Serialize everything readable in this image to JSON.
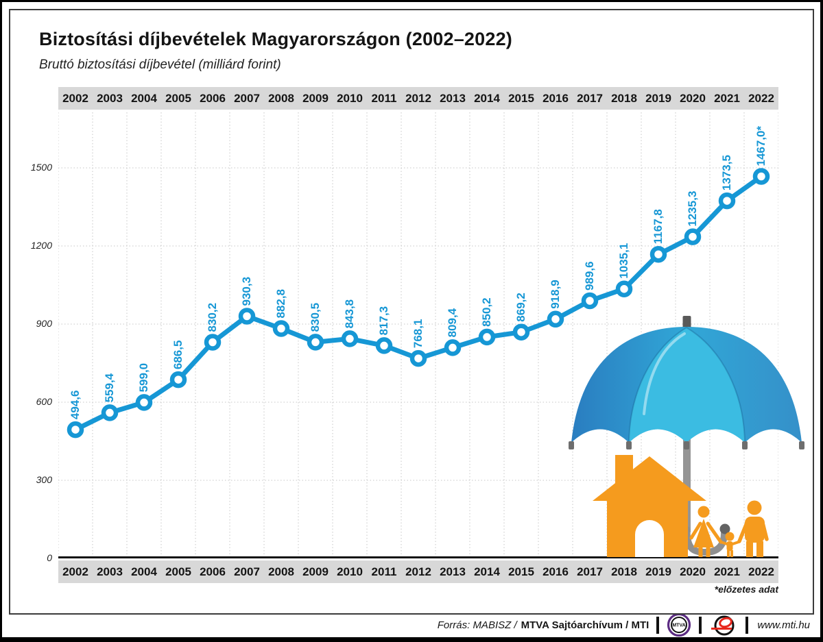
{
  "header": {
    "title": "Biztosítási díjbevételek Magyarországon (2002–2022)",
    "subtitle": "Bruttó biztosítási díjbevétel (milliárd forint)"
  },
  "chart_data": {
    "type": "line",
    "title": "Biztosítási díjbevételek Magyarországon (2002–2022)",
    "subtitle_unit": "Bruttó biztosítási díjbevétel (milliárd forint)",
    "categories": [
      "2002",
      "2003",
      "2004",
      "2005",
      "2006",
      "2007",
      "2008",
      "2009",
      "2010",
      "2011",
      "2012",
      "2013",
      "2014",
      "2015",
      "2016",
      "2017",
      "2018",
      "2019",
      "2020",
      "2021",
      "2022"
    ],
    "series": [
      {
        "name": "Bruttó biztosítási díjbevétel",
        "values": [
          494.6,
          559.4,
          599.0,
          686.5,
          830.2,
          930.3,
          882.8,
          830.5,
          843.8,
          817.3,
          768.1,
          809.4,
          850.2,
          869.2,
          918.9,
          989.6,
          1035.1,
          1167.8,
          1235.3,
          1373.5,
          1467.0
        ],
        "point_labels": [
          "494,6",
          "559,4",
          "599,0",
          "686,5",
          "830,2",
          "930,3",
          "882,8",
          "830,5",
          "843,8",
          "817,3",
          "768,1",
          "809,4",
          "850,2",
          "869,2",
          "918,9",
          "989,6",
          "1035,1",
          "1167,8",
          "1235,3",
          "1373,5",
          "1467,0*"
        ]
      }
    ],
    "ylim": [
      0,
      1500
    ],
    "yticks": [
      0,
      300,
      600,
      900,
      1200,
      1500
    ],
    "grid": "dotted, vertical per year column and horizontal per 300",
    "legend_position": "none",
    "x_axis": "years shown in gray bands above and below plot",
    "marker": "open-circle",
    "line_color": "#1697d5"
  },
  "footnote": "*előzetes adat",
  "footer": {
    "source_italic": "Forrás: MABISZ /",
    "source_bold": "MTVA Sajtóarchívum / MTI",
    "mtva_logo_label": "MTVA",
    "website": "www.mti.hu"
  },
  "theme": {
    "accent_blue": "#1697d5",
    "band_bg": "#d8d8d8",
    "grid_gray": "#c6c6c6",
    "axis_black": "#111111",
    "orange": "#f59b1e",
    "umbrella_dark": "#2a7dc0",
    "umbrella_mid": "#2f9ed2",
    "umbrella_light": "#3bbce2",
    "pole_gray": "#959595",
    "pole_dark": "#5f5f5f",
    "logo_purple": "#5c2c83",
    "logo_red": "#e8271c"
  }
}
